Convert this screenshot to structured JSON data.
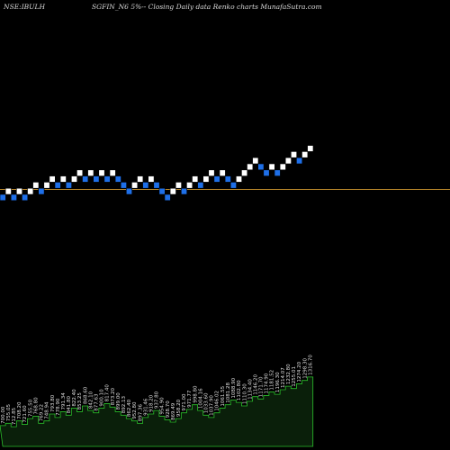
{
  "header": {
    "symbol": "NSE:IBULH",
    "title": "SGFIN_N6 5%-- Closing Daily data Renko charts MunafaSutra.com"
  },
  "colors": {
    "background": "#000000",
    "up_brick": "#ffffff",
    "down_brick": "#1e6fe8",
    "brick_border": "#000000",
    "ref_line": "#b8862a",
    "volume_fill": "#0a1f0a",
    "volume_line": "#2bbf2b",
    "label_text": "#e0e0e0"
  },
  "chart_data": {
    "type": "renko",
    "bricks": [
      {
        "level": 0,
        "dir": "down"
      },
      {
        "level": 1,
        "dir": "up"
      },
      {
        "level": 0,
        "dir": "down"
      },
      {
        "level": 1,
        "dir": "up"
      },
      {
        "level": 0,
        "dir": "down"
      },
      {
        "level": 1,
        "dir": "up"
      },
      {
        "level": 2,
        "dir": "up"
      },
      {
        "level": 1,
        "dir": "down"
      },
      {
        "level": 2,
        "dir": "up"
      },
      {
        "level": 3,
        "dir": "up"
      },
      {
        "level": 2,
        "dir": "down"
      },
      {
        "level": 3,
        "dir": "up"
      },
      {
        "level": 2,
        "dir": "down"
      },
      {
        "level": 3,
        "dir": "up"
      },
      {
        "level": 4,
        "dir": "up"
      },
      {
        "level": 3,
        "dir": "down"
      },
      {
        "level": 4,
        "dir": "up"
      },
      {
        "level": 3,
        "dir": "down"
      },
      {
        "level": 4,
        "dir": "up"
      },
      {
        "level": 3,
        "dir": "down"
      },
      {
        "level": 4,
        "dir": "up"
      },
      {
        "level": 3,
        "dir": "down"
      },
      {
        "level": 2,
        "dir": "down"
      },
      {
        "level": 1,
        "dir": "down"
      },
      {
        "level": 2,
        "dir": "up"
      },
      {
        "level": 3,
        "dir": "up"
      },
      {
        "level": 2,
        "dir": "down"
      },
      {
        "level": 3,
        "dir": "up"
      },
      {
        "level": 2,
        "dir": "down"
      },
      {
        "level": 1,
        "dir": "down"
      },
      {
        "level": 0,
        "dir": "down"
      },
      {
        "level": 1,
        "dir": "up"
      },
      {
        "level": 2,
        "dir": "up"
      },
      {
        "level": 1,
        "dir": "down"
      },
      {
        "level": 2,
        "dir": "up"
      },
      {
        "level": 3,
        "dir": "up"
      },
      {
        "level": 2,
        "dir": "down"
      },
      {
        "level": 3,
        "dir": "up"
      },
      {
        "level": 4,
        "dir": "up"
      },
      {
        "level": 3,
        "dir": "down"
      },
      {
        "level": 4,
        "dir": "up"
      },
      {
        "level": 3,
        "dir": "down"
      },
      {
        "level": 2,
        "dir": "down"
      },
      {
        "level": 3,
        "dir": "up"
      },
      {
        "level": 4,
        "dir": "up"
      },
      {
        "level": 5,
        "dir": "up"
      },
      {
        "level": 6,
        "dir": "up"
      },
      {
        "level": 5,
        "dir": "down"
      },
      {
        "level": 4,
        "dir": "down"
      },
      {
        "level": 5,
        "dir": "up"
      },
      {
        "level": 4,
        "dir": "down"
      },
      {
        "level": 5,
        "dir": "up"
      },
      {
        "level": 6,
        "dir": "up"
      },
      {
        "level": 7,
        "dir": "up"
      },
      {
        "level": 6,
        "dir": "down"
      },
      {
        "level": 7,
        "dir": "up"
      },
      {
        "level": 8,
        "dir": "up"
      }
    ],
    "ref_level": 1.3,
    "volume": {
      "values": [
        18,
        20,
        17,
        22,
        19,
        24,
        26,
        20,
        22,
        28,
        25,
        30,
        27,
        33,
        30,
        35,
        31,
        29,
        33,
        37,
        34,
        30,
        27,
        24,
        22,
        20,
        25,
        28,
        31,
        26,
        23,
        21,
        24,
        29,
        32,
        36,
        31,
        27,
        25,
        29,
        33,
        36,
        40,
        38,
        35,
        39,
        43,
        41,
        44,
        47,
        45,
        49,
        52,
        50,
        54,
        57,
        60
      ],
      "ymax": 70
    },
    "value_labels": [
      "700.00",
      "755.05",
      "712.85",
      "708.20",
      "721.60",
      "755.50",
      "768.80",
      "769.22",
      "748.94",
      "793.80",
      "778.90",
      "791.34",
      "841.80",
      "822.40",
      "853.25",
      "868.60",
      "842.10",
      "877.63",
      "900.10",
      "817.40",
      "873.20",
      "899.00",
      "892.13",
      "862.40",
      "952.80",
      "897.36",
      "931.46",
      "918.20",
      "937.80",
      "954.90",
      "928.70",
      "869.49",
      "958.20",
      "971.00",
      "971.77",
      "998.80",
      "1004.16",
      "1033.60",
      "1037.90",
      "1046.02",
      "1061.55",
      "1081.28",
      "1088.90",
      "1102.80",
      "1110.30",
      "1134.40",
      "1146.20",
      "1171.70",
      "1174.90",
      "1181.52",
      "1196.30",
      "1214.07",
      "1232.80",
      "1255.01",
      "1274.20",
      "1298.30",
      "1316.70"
    ]
  }
}
